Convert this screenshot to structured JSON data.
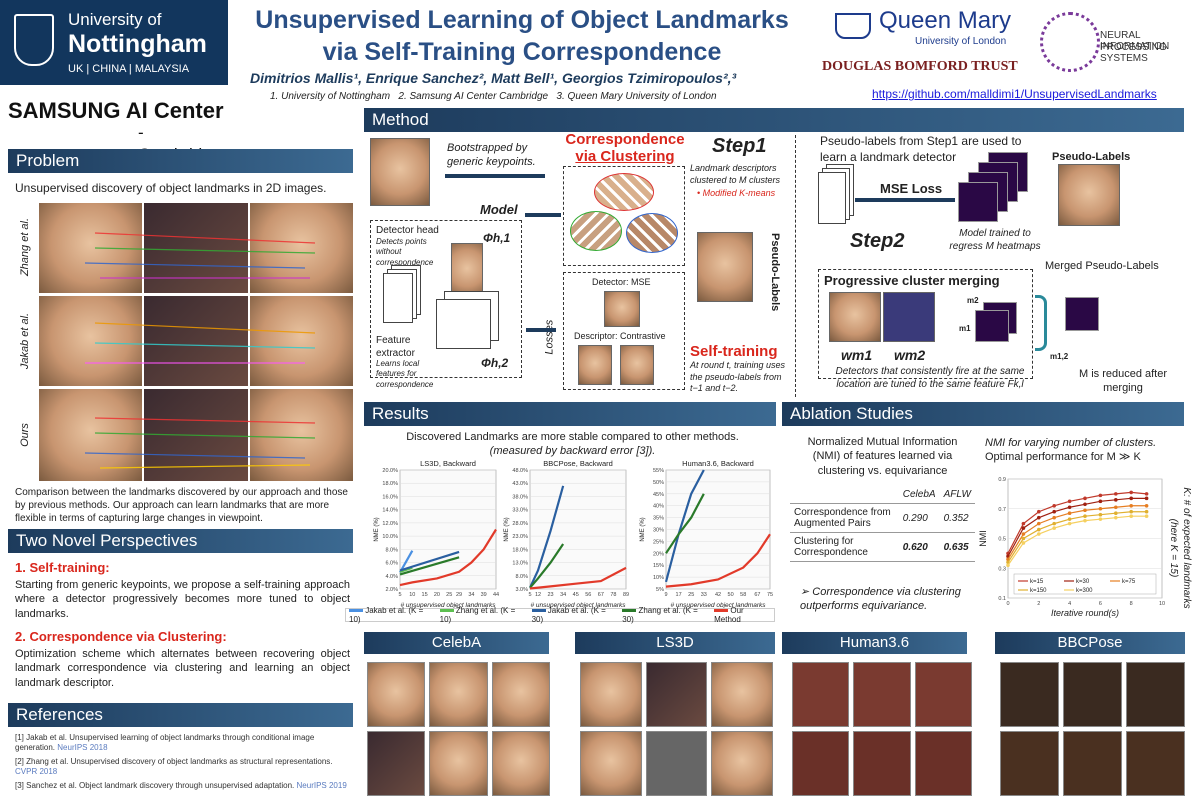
{
  "header": {
    "nottingham": {
      "line1": "University of",
      "line2": "Nottingham",
      "line3": "UK | CHINA | MALAYSIA"
    },
    "title_line1": "Unsupervised Learning of Object Landmarks",
    "title_line2": "via Self-Training Correspondence",
    "authors": "Dimitrios Mallis¹, Enrique Sanchez², Matt Bell¹, Georgios Tzimiropoulos²,³",
    "affiliations": "1. University of Nottingham   2. Samsung AI Center Cambridge   3. Queen Mary University of London",
    "github": "https://github.com/malldimi1/UnsupervisedLandmarks",
    "samsung_line1": "SAMSUNG AI Center",
    "samsung_line2": "- Cambridge",
    "qm_line1": "Queen Mary",
    "qm_line2": "University of London",
    "dbt": "DOUGLAS BOMFORD TRUST",
    "neurips_line1": "NEURAL INFORMATION",
    "neurips_line2": "PROCESSING SYSTEMS"
  },
  "problem": {
    "heading": "Problem",
    "text": "Unsupervised discovery of object landmarks in 2D images.",
    "rows": [
      "Zhang et al.",
      "Jakab et al.",
      "Ours"
    ],
    "caption": "Comparison between the landmarks discovered by our approach and those by previous methods. Our approach can learn landmarks that are more flexible in terms of capturing large changes in viewpoint."
  },
  "perspectives": {
    "heading": "Two Novel Perspectives",
    "p1_title": "1. Self-training:",
    "p1_text": "Starting from generic keypoints, we propose a self-training approach where a detector progressively becomes more tuned to object landmarks.",
    "p2_title": "2. Correspondence via Clustering:",
    "p2_text": "Optimization scheme which alternates between recovering object landmark correspondence via clustering and learning an object landmark descriptor."
  },
  "references": {
    "heading": "References",
    "r1": "[1] Jakab et al. Unsupervised learning of object landmarks through conditional image generation.",
    "r1v": "NeurIPS 2018",
    "r2": "[2] Zhang et al. Unsupervised discovery of object landmarks as structural representations.",
    "r2v": "CVPR 2018",
    "r3": "[3] Sanchez et al. Object landmark discovery through unsupervised adaptation.",
    "r3v": "NeurIPS 2019"
  },
  "method": {
    "heading": "Method",
    "bootstrapped": "Bootstrapped by generic keypoints.",
    "corr_title_1": "Correspondence",
    "corr_title_2": "via Clustering",
    "step1": "Step1",
    "step1_text": "Landmark descriptors clustered to M clusters",
    "kmeans": "• Modified K-means",
    "model": "Model",
    "detector_head": "Detector head",
    "detector_head_sub": "Detects points without correspondence",
    "phi1": "Φh,1",
    "phi2": "Φh,2",
    "feature_extractor": "Feature extractor",
    "feature_sub": "Learns local features for correspondence",
    "losses": "Losses",
    "detector_mse": "Detector: MSE",
    "descriptor": "Descriptor: Contrastive",
    "pseudo_labels_vert": "Pseudo-Labels",
    "self_training": "Self-training",
    "self_training_text": "At round t, training uses the pseudo-labels from t−1 and t−2.",
    "step2_intro": "Pseudo-labels from Step1 are used to learn a landmark detector",
    "mse_loss": "MSE Loss",
    "pseudo_labels": "Pseudo-Labels",
    "step2": "Step2",
    "model_trained": "Model trained to regress M heatmaps",
    "merged": "Merged Pseudo-Labels",
    "prog_merge": "Progressive cluster merging",
    "m1": "m1",
    "m2": "m2",
    "m12": "m1,2",
    "wm1": "wm1",
    "wm2": "wm2",
    "detectors_text": "Detectors that consistently fire at the same location are tuned to the same feature Fk,l",
    "m_reduced": "M is reduced after merging"
  },
  "results": {
    "heading": "Results",
    "line1": "Discovered Landmarks are more stable compared to other methods.",
    "line2": "(measured by backward error [3]).",
    "legend": [
      "Jakab et al. (K = 10)",
      "Zhang et al. (K = 10)",
      "Jakab et al. (K = 30)",
      "Zhang et al. (K = 30)",
      "Our Method"
    ],
    "xlabel": "# unsupervised object landmarks",
    "ylabel": "NME (%)"
  },
  "ablation": {
    "heading": "Ablation Studies",
    "nmi_text": "Normalized Mutual Information (NMI) of features learned via clustering vs. equivariance",
    "col1": "CelebA",
    "col2": "AFLW",
    "row1": "Correspondence from Augmented Pairs",
    "row1_v1": "0.290",
    "row1_v2": "0.352",
    "row2": "Clustering for Correspondence",
    "row2_v1": "0.620",
    "row2_v2": "0.635",
    "conclusion": "➢ Correspondence via clustering outperforms equivariance.",
    "plot_title_1": "NMI for varying number of clusters.",
    "plot_title_2": "Optimal performance for M ≫ K",
    "plot_xlabel": "Iterative round(s)",
    "plot_ylabel": "NMI",
    "side_label": "K: # of expected landmarks (here K = 15)"
  },
  "datasets": [
    "CelebA",
    "LS3D",
    "Human3.6",
    "BBCPose"
  ],
  "colors": {
    "band": "#1d3b5c",
    "red": "#d9261c",
    "blue": "#1d3b5c"
  },
  "chart_data": [
    {
      "type": "line",
      "title": "LS3D, Backward",
      "xlabel": "# unsupervised object landmarks",
      "ylabel": "NME (%)",
      "x_ticks": [
        "5",
        "10",
        "15",
        "20",
        "25",
        "29",
        "34",
        "39",
        "44"
      ],
      "y_ticks": [
        "2.0%",
        "4.0%",
        "6.0%",
        "8.0%",
        "10.0%",
        "12.0%",
        "14.0%",
        "16.0%",
        "18.0%",
        "20.0%"
      ],
      "ylim": [
        2,
        20
      ],
      "series": [
        {
          "name": "Jakab et al. (K = 10)",
          "color": "#4a90e2",
          "x": [
            5,
            10
          ],
          "y": [
            4.5,
            7.8
          ]
        },
        {
          "name": "Zhang et al. (K = 10)",
          "color": "#5cbf50",
          "x": [
            5,
            10
          ],
          "y": [
            4.6,
            5.2
          ]
        },
        {
          "name": "Jakab et al. (K = 30)",
          "color": "#2a5fa0",
          "x": [
            5,
            29
          ],
          "y": [
            4.8,
            7.6
          ]
        },
        {
          "name": "Zhang et al. (K = 30)",
          "color": "#2a7a2a",
          "x": [
            5,
            29
          ],
          "y": [
            4.2,
            6.8
          ]
        },
        {
          "name": "Our Method",
          "color": "#e23a2a",
          "x": [
            5,
            10,
            20,
            29,
            34,
            39,
            44
          ],
          "y": [
            2.6,
            3.0,
            3.6,
            4.6,
            6.0,
            8.0,
            11.0
          ]
        }
      ]
    },
    {
      "type": "line",
      "title": "BBCPose, Backward",
      "xlabel": "# unsupervised object landmarks",
      "ylabel": "NME (%)",
      "x_ticks": [
        "5",
        "12",
        "23",
        "34",
        "45",
        "56",
        "67",
        "78",
        "89"
      ],
      "y_ticks": [
        "3.0%",
        "8.0%",
        "13.0%",
        "18.0%",
        "23.0%",
        "28.0%",
        "33.0%",
        "38.0%",
        "43.0%",
        "48.0%"
      ],
      "ylim": [
        3,
        48
      ],
      "series": [
        {
          "name": "Jakab et al. (K = 30)",
          "color": "#2a5fa0",
          "x": [
            5,
            12,
            23,
            34
          ],
          "y": [
            3.5,
            10,
            25,
            42
          ]
        },
        {
          "name": "Zhang et al. (K = 30)",
          "color": "#2a7a2a",
          "x": [
            5,
            12,
            23,
            34
          ],
          "y": [
            3.5,
            7,
            13,
            20
          ]
        },
        {
          "name": "Our Method",
          "color": "#e23a2a",
          "x": [
            5,
            23,
            45,
            67,
            89
          ],
          "y": [
            3.2,
            4,
            5,
            6,
            11
          ]
        }
      ]
    },
    {
      "type": "line",
      "title": "Human3.6, Backward",
      "xlabel": "# unsupervised object landmarks",
      "ylabel": "NME (%)",
      "x_ticks": [
        "9",
        "17",
        "25",
        "33",
        "42",
        "50",
        "58",
        "67",
        "75"
      ],
      "y_ticks": [
        "5%",
        "10%",
        "15%",
        "20%",
        "25%",
        "30%",
        "35%",
        "40%",
        "45%",
        "50%",
        "55%"
      ],
      "ylim": [
        5,
        55
      ],
      "series": [
        {
          "name": "Jakab et al. (K = 30)",
          "color": "#2a5fa0",
          "x": [
            9,
            17,
            25,
            33
          ],
          "y": [
            8,
            28,
            45,
            55
          ]
        },
        {
          "name": "Zhang et al. (K = 30)",
          "color": "#2a7a2a",
          "x": [
            9,
            17,
            25,
            33
          ],
          "y": [
            20,
            28,
            35,
            45
          ]
        },
        {
          "name": "Our Method",
          "color": "#e23a2a",
          "x": [
            9,
            25,
            42,
            58,
            67,
            75
          ],
          "y": [
            6,
            7,
            9,
            14,
            20,
            28
          ]
        }
      ]
    },
    {
      "type": "line",
      "title": "",
      "xlabel": "Iterative round(s)",
      "ylabel": "NMI",
      "x_ticks": [
        "0",
        "2",
        "4",
        "6",
        "8",
        "10"
      ],
      "y_ticks": [
        "0.1",
        "0.3",
        "0.5",
        "0.7",
        "0.9"
      ],
      "xlim": [
        0,
        10
      ],
      "ylim": [
        0.1,
        0.9
      ],
      "series": [
        {
          "name": "k=15",
          "color": "#c0392b",
          "x": [
            0,
            1,
            2,
            3,
            4,
            5,
            6,
            7,
            8,
            9
          ],
          "y": [
            0.4,
            0.6,
            0.68,
            0.72,
            0.75,
            0.77,
            0.79,
            0.8,
            0.81,
            0.8
          ]
        },
        {
          "name": "k=30",
          "color": "#a02010",
          "x": [
            0,
            1,
            2,
            3,
            4,
            5,
            6,
            7,
            8,
            9
          ],
          "y": [
            0.38,
            0.57,
            0.64,
            0.68,
            0.71,
            0.73,
            0.75,
            0.76,
            0.77,
            0.77
          ]
        },
        {
          "name": "k=75",
          "color": "#e67e22",
          "x": [
            0,
            1,
            2,
            3,
            4,
            5,
            6,
            7,
            8,
            9
          ],
          "y": [
            0.36,
            0.53,
            0.6,
            0.64,
            0.67,
            0.69,
            0.7,
            0.71,
            0.72,
            0.72
          ]
        },
        {
          "name": "k=150",
          "color": "#e0b030",
          "x": [
            0,
            1,
            2,
            3,
            4,
            5,
            6,
            7,
            8,
            9
          ],
          "y": [
            0.34,
            0.5,
            0.56,
            0.6,
            0.63,
            0.65,
            0.66,
            0.67,
            0.68,
            0.68
          ]
        },
        {
          "name": "k=300",
          "color": "#f5d060",
          "x": [
            0,
            1,
            2,
            3,
            4,
            5,
            6,
            7,
            8,
            9
          ],
          "y": [
            0.32,
            0.47,
            0.53,
            0.57,
            0.6,
            0.62,
            0.63,
            0.64,
            0.65,
            0.65
          ]
        }
      ]
    }
  ]
}
